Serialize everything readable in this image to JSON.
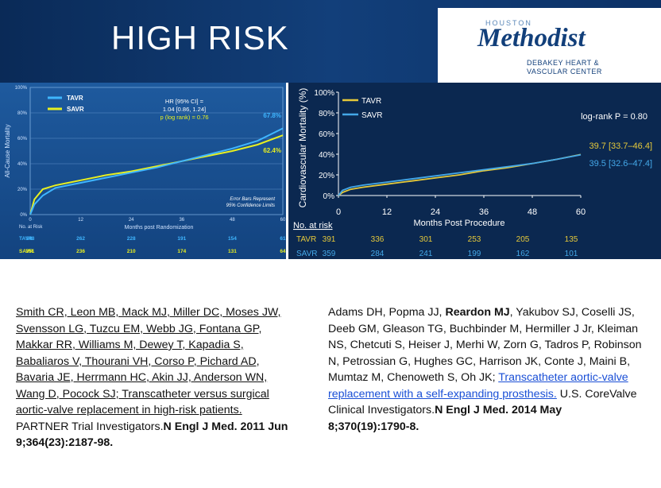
{
  "slide": {
    "title": "HIGH RISK",
    "logo": {
      "houston": "HOUSTON",
      "name": "Methodist",
      "sub1": "DEBAKEY HEART &",
      "sub2": "VASCULAR CENTER"
    }
  },
  "colors": {
    "tavr_left": "#3fb6ff",
    "savr_left": "#e8f020",
    "tavr_right": "#e5c93a",
    "savr_right": "#44a8e8"
  },
  "chart_data": [
    {
      "type": "line",
      "ylabel": "All-Cause Mortality",
      "xlabel": "Months post Randomization",
      "x_ticks": [
        "0",
        "12",
        "24",
        "36",
        "48",
        "60"
      ],
      "y_ticks": [
        "0%",
        "20%",
        "40%",
        "60%",
        "80%",
        "100%"
      ],
      "ylim": [
        0,
        100
      ],
      "xlim": [
        0,
        60
      ],
      "legend": [
        "TAVR",
        "SAVR"
      ],
      "annotation": {
        "line1": "HR [95% CI] =",
        "line2": "1.04 [0.86, 1.24]",
        "line3": "p (log rank) = 0.76"
      },
      "note": {
        "line1": "Error Bars Represent",
        "line2": "95% Confidence Limits"
      },
      "end_labels": {
        "tavr": "67.8%",
        "savr": "62.4%"
      },
      "series": [
        {
          "name": "TAVR",
          "x": [
            0,
            1,
            3,
            6,
            9,
            12,
            18,
            24,
            30,
            36,
            42,
            48,
            54,
            60
          ],
          "y": [
            0,
            8,
            15,
            21,
            23,
            25,
            29,
            33,
            37,
            42,
            47,
            52,
            58,
            67.8
          ]
        },
        {
          "name": "SAVR",
          "x": [
            0,
            1,
            3,
            6,
            9,
            12,
            18,
            24,
            30,
            36,
            42,
            48,
            54,
            60
          ],
          "y": [
            0,
            12,
            20,
            23,
            25,
            27,
            31,
            34,
            38,
            42,
            46,
            50,
            55,
            62.4
          ]
        }
      ],
      "at_risk": {
        "label": "No. at Risk",
        "rows": [
          {
            "name": "TAVR",
            "values": [
              "348",
              "262",
              "228",
              "191",
              "154",
              "61"
            ]
          },
          {
            "name": "SAVR",
            "values": [
              "351",
              "236",
              "210",
              "174",
              "131",
              "64"
            ]
          }
        ]
      }
    },
    {
      "type": "line",
      "ylabel": "Cardiovascular Mortality (%)",
      "xlabel": "Months Post Procedure",
      "x_ticks": [
        "0",
        "12",
        "24",
        "36",
        "48",
        "60"
      ],
      "y_ticks": [
        "0%",
        "20%",
        "40%",
        "60%",
        "80%",
        "100%"
      ],
      "ylim": [
        0,
        100
      ],
      "xlim": [
        0,
        60
      ],
      "legend": [
        "TAVR",
        "SAVR"
      ],
      "annotation": "log-rank P = 0.80",
      "end_labels": {
        "tavr": "39.7 [33.7–46.4]",
        "savr": "39.5 [32.6–47.4]"
      },
      "series": [
        {
          "name": "TAVR",
          "x": [
            0,
            1,
            3,
            6,
            12,
            18,
            24,
            30,
            36,
            42,
            48,
            54,
            60
          ],
          "y": [
            0,
            3,
            6,
            8,
            11,
            14,
            17,
            20,
            24,
            27,
            31,
            35,
            39.7
          ]
        },
        {
          "name": "SAVR",
          "x": [
            0,
            1,
            3,
            6,
            12,
            18,
            24,
            30,
            36,
            42,
            48,
            54,
            60
          ],
          "y": [
            0,
            5,
            8,
            10,
            13,
            16,
            19,
            22,
            25,
            28,
            31,
            35,
            39.5
          ]
        }
      ],
      "at_risk": {
        "label": "No. at risk",
        "rows": [
          {
            "name": "TAVR",
            "values": [
              "391",
              "336",
              "301",
              "253",
              "205",
              "135"
            ]
          },
          {
            "name": "SAVR",
            "values": [
              "359",
              "284",
              "241",
              "199",
              "162",
              "101"
            ]
          }
        ]
      }
    }
  ],
  "citation_left": {
    "underlined_lines": [
      "Smith CR, Leon MB, Mack MJ, Miller DC, Moses JW,",
      "Svensson LG, Tuzcu EM, Webb JG, Fontana GP,",
      "Makkar RR, Williams M, Dewey T, Kapadia S,",
      "Babaliaros V, Thourani VH, Corso P, Pichard AD,",
      "Bavaria JE, Herrmann HC, Akin JJ, Anderson WN,",
      "Wang D, Pocock SJ; Transcatheter versus surgical",
      "aortic-valve replacement in high-risk patients."
    ],
    "group": "PARTNER Trial Investigators.",
    "journal": "N Engl J Med. 2011 Jun",
    "ref": "9;364(23):2187-98."
  },
  "citation_right": {
    "part1": "Adams DH, Popma JJ, ",
    "bold_author": "Reardon MJ",
    "part2": ", Yakubov SJ, Coselli JS, Deeb GM, Gleason TG, Buchbinder M, Hermiller J Jr, Kleiman NS, Chetcuti S, Heiser J, Merhi W, Zorn G, Tadros P, Robinson N, Petrossian G, Hughes GC, Harrison JK, Conte J, Maini B, Mumtaz M, Chenoweth S, Oh JK; ",
    "link_text": "Transcatheter aortic-valve replacement with a self-expanding prosthesis.",
    "group": " U.S. CoreValve Clinical Investigators.",
    "journal": "N Engl J Med. 2014 May 8;370(19):1790-8."
  }
}
